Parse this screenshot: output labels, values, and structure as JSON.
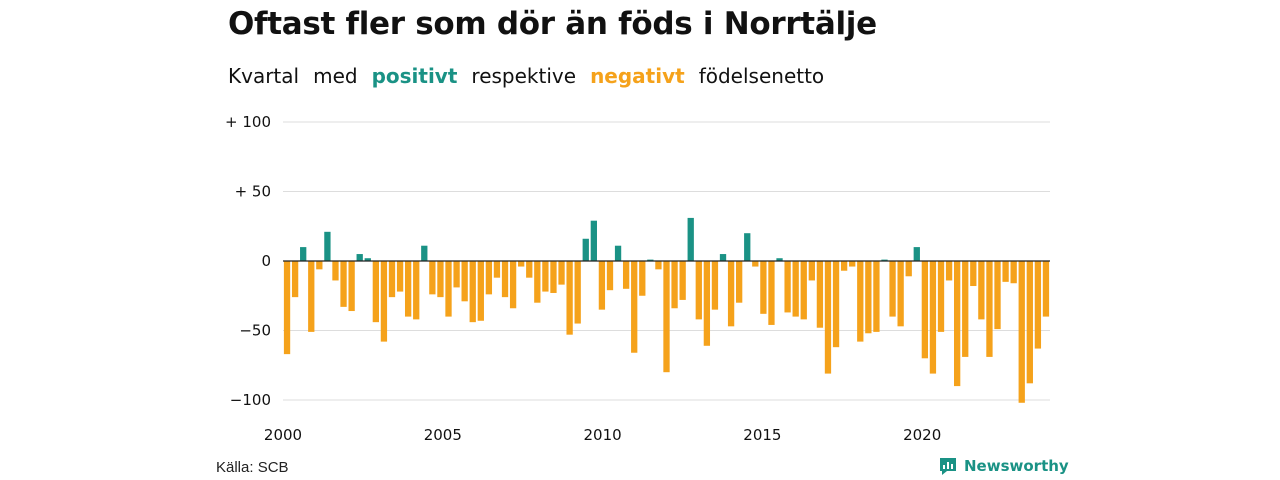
{
  "title": "Oftast fler som dör än föds i Norrtälje",
  "subtitle": {
    "part1": "Kvartal",
    "part2": "med",
    "positive_word": "positivt",
    "part3": "respektive",
    "negative_word": "negativt",
    "part4": "födelsenetto"
  },
  "colors": {
    "positive": "#1a9285",
    "negative": "#f5a21b",
    "grid": "#dddddd",
    "zero_line": "#222222"
  },
  "source": "Källa: SCB",
  "brand": {
    "name": "Newsworthy",
    "icon": "newsworthy-logo-icon"
  },
  "chart_data": {
    "type": "bar",
    "title": "Oftast fler som dör än föds i Norrtälje",
    "xlabel": "",
    "ylabel": "",
    "ylim": [
      -105,
      100
    ],
    "y_ticks": [
      100,
      50,
      0,
      -50,
      -100
    ],
    "y_tick_labels": [
      "+ 100",
      "+  50",
      "0",
      "−50",
      "−100"
    ],
    "x_ticks": [
      2000,
      2005,
      2010,
      2015,
      2020
    ],
    "x_tick_labels": [
      "2000",
      "2005",
      "2010",
      "2015",
      "2020"
    ],
    "x_start": 2000,
    "x_end": 2024,
    "grid": true,
    "legend": "none",
    "values": [
      -67,
      -26,
      10,
      -51,
      -6,
      21,
      -14,
      -33,
      -36,
      5,
      2,
      -44,
      -58,
      -26,
      -22,
      -40,
      -42,
      11,
      -24,
      -26,
      -40,
      -19,
      -29,
      -44,
      -43,
      -24,
      -12,
      -26,
      -34,
      -4,
      -12,
      -30,
      -22,
      -23,
      -17,
      -53,
      -45,
      16,
      29,
      -35,
      -21,
      11,
      -20,
      -66,
      -25,
      1,
      -6,
      -80,
      -34,
      -28,
      31,
      -42,
      -61,
      -35,
      5,
      -47,
      -30,
      20,
      -4,
      -38,
      -46,
      2,
      -37,
      -40,
      -42,
      -14,
      -48,
      -81,
      -62,
      -7,
      -4,
      -58,
      -52,
      -51,
      1,
      -40,
      -47,
      -11,
      10,
      -70,
      -81,
      -51,
      -14,
      -90,
      -69,
      -18,
      -42,
      -69,
      -49,
      -15,
      -16,
      -102,
      -88,
      -63,
      -40
    ]
  }
}
